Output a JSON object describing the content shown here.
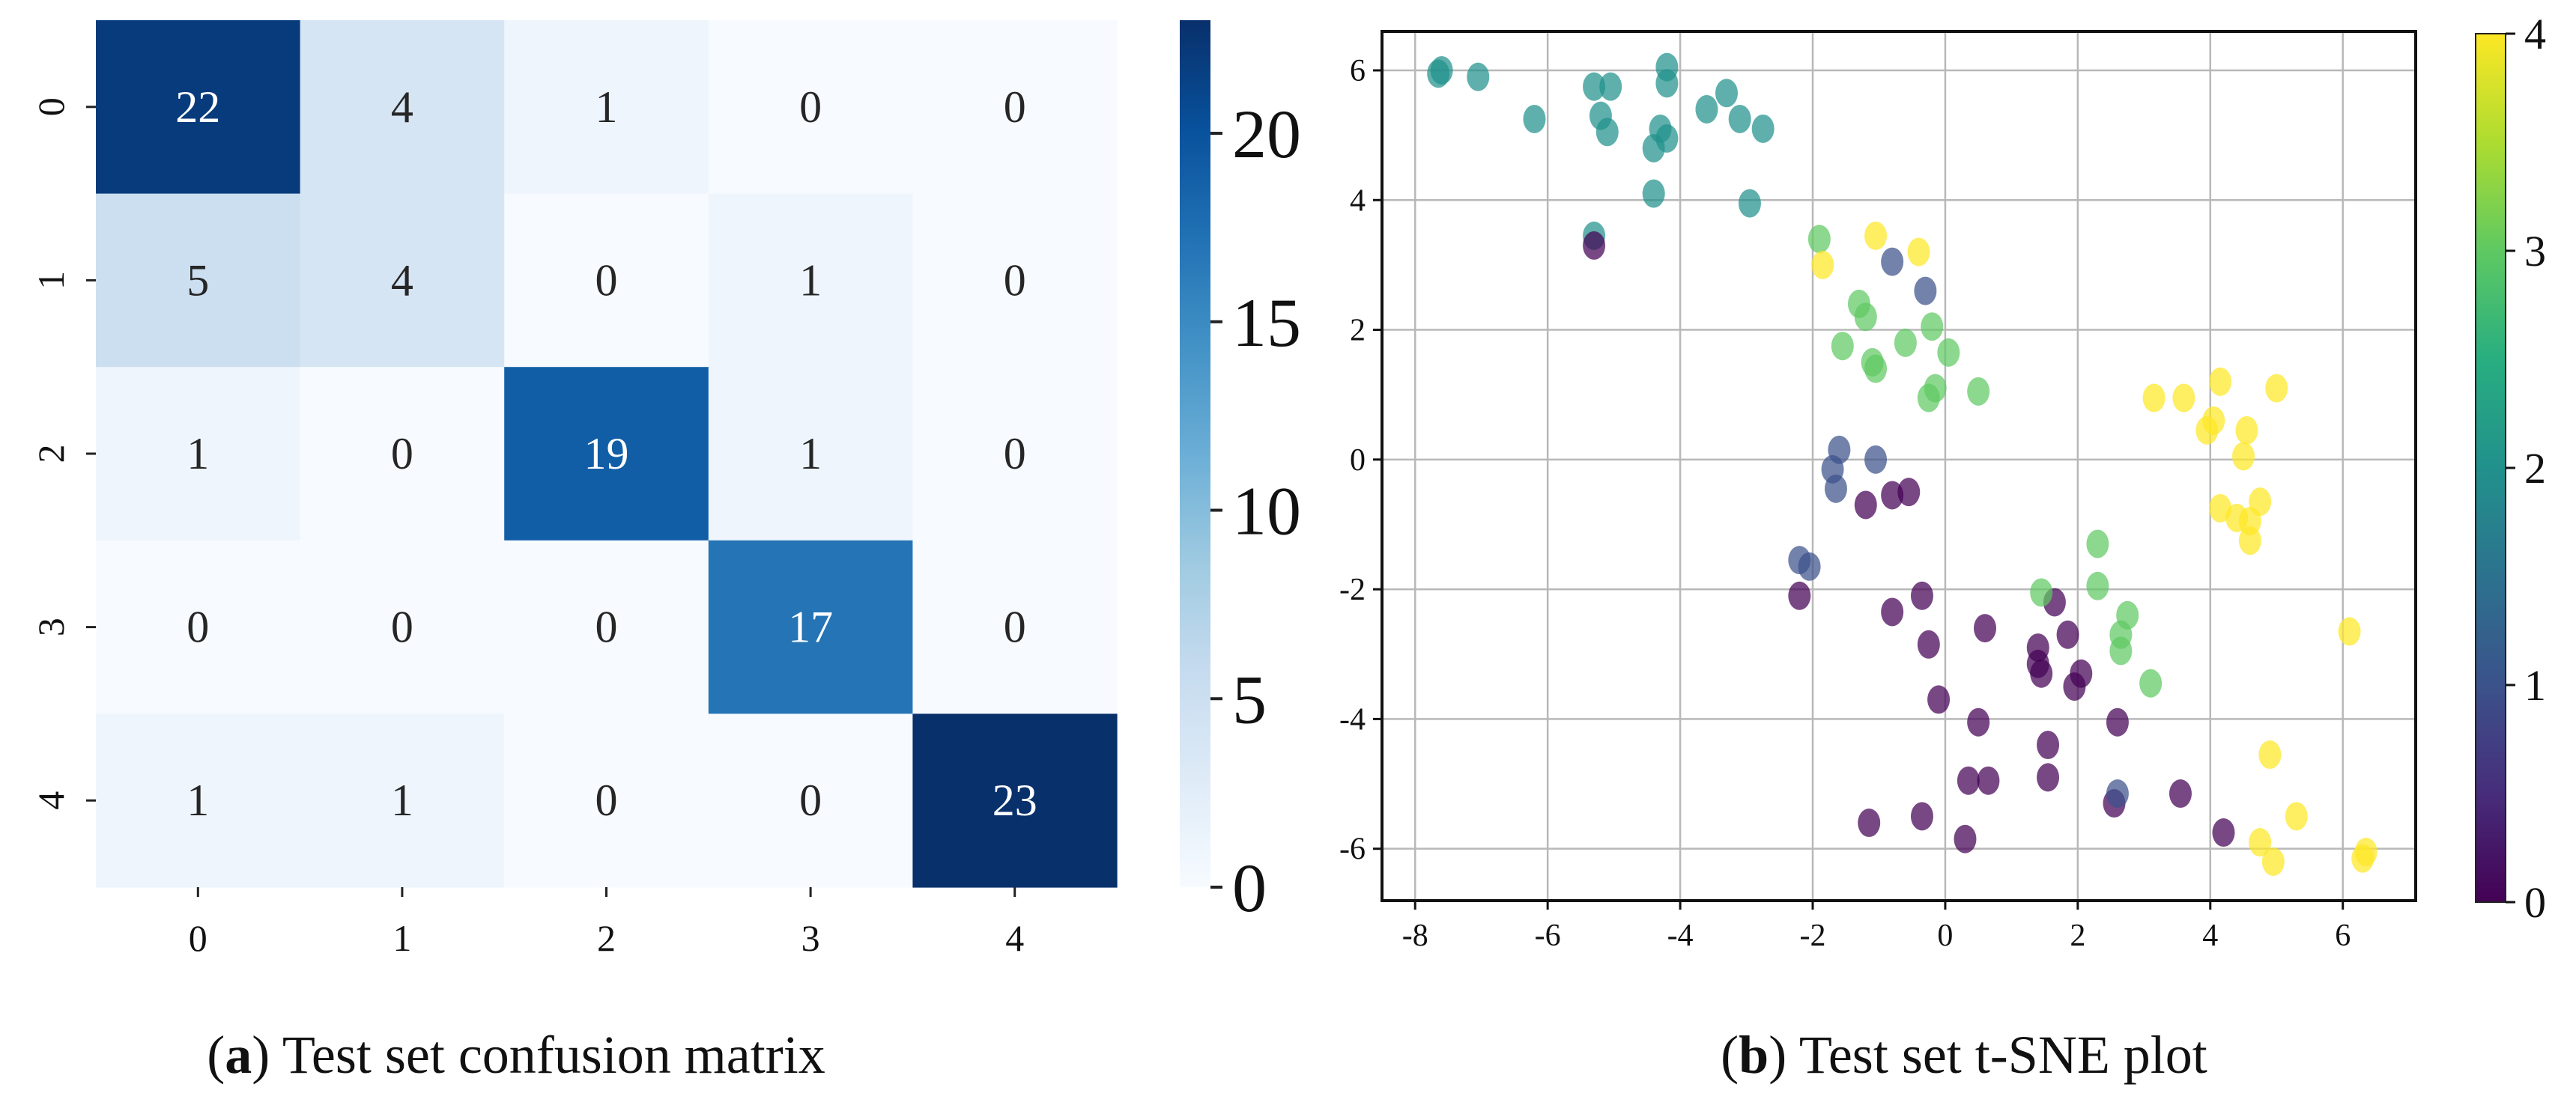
{
  "chart_data": [
    {
      "type": "heatmap",
      "title": "",
      "xlabel": "",
      "ylabel": "",
      "x_categories": [
        "0",
        "1",
        "2",
        "3",
        "4"
      ],
      "y_categories": [
        "0",
        "1",
        "2",
        "3",
        "4"
      ],
      "matrix": [
        [
          22,
          4,
          1,
          0,
          0
        ],
        [
          5,
          4,
          0,
          1,
          0
        ],
        [
          1,
          0,
          19,
          1,
          0
        ],
        [
          0,
          0,
          0,
          17,
          0
        ],
        [
          1,
          1,
          0,
          0,
          23
        ]
      ],
      "colorscale": "Blues",
      "color_range": [
        0,
        23
      ],
      "colorbar_ticks": [
        0,
        5,
        10,
        15,
        20
      ],
      "colorbar_tick_labels": [
        "0",
        "5",
        "10",
        "15",
        "20"
      ]
    },
    {
      "type": "scatter",
      "title": "",
      "xlabel": "",
      "ylabel": "",
      "xlim": [
        -8.5,
        7.1
      ],
      "ylim": [
        -6.8,
        6.6
      ],
      "xticks": [
        -8,
        -6,
        -4,
        -2,
        0,
        2,
        4,
        6
      ],
      "xtick_labels": [
        "-8",
        "-6",
        "-4",
        "-2",
        "0",
        "2",
        "4",
        "6"
      ],
      "yticks": [
        -6,
        -4,
        -2,
        0,
        2,
        4,
        6
      ],
      "ytick_labels": [
        "-6",
        "-4",
        "-2",
        "0",
        "2",
        "4",
        "6"
      ],
      "grid": true,
      "colorscale": "viridis",
      "color_range": [
        0,
        4
      ],
      "colorbar_ticks": [
        0,
        1,
        2,
        3,
        4
      ],
      "colorbar_tick_labels": [
        "0",
        "1",
        "2",
        "3",
        "4"
      ],
      "points": [
        [
          -7.6,
          6.0,
          2
        ],
        [
          -7.65,
          5.95,
          2
        ],
        [
          -7.05,
          5.9,
          2
        ],
        [
          -6.2,
          5.25,
          2
        ],
        [
          -5.3,
          5.75,
          2
        ],
        [
          -5.05,
          5.75,
          2
        ],
        [
          -5.2,
          5.3,
          2
        ],
        [
          -5.1,
          5.05,
          2
        ],
        [
          -4.2,
          6.05,
          2
        ],
        [
          -4.2,
          5.8,
          2
        ],
        [
          -4.3,
          5.1,
          2
        ],
        [
          -4.2,
          4.95,
          2
        ],
        [
          -4.4,
          4.8,
          2
        ],
        [
          -3.6,
          5.4,
          2
        ],
        [
          -3.3,
          5.65,
          2
        ],
        [
          -3.1,
          5.25,
          2
        ],
        [
          -2.75,
          5.1,
          2
        ],
        [
          -4.4,
          4.1,
          2
        ],
        [
          -2.95,
          3.95,
          2
        ],
        [
          -5.3,
          3.45,
          2
        ],
        [
          -5.3,
          3.3,
          0
        ],
        [
          -1.9,
          3.4,
          3
        ],
        [
          -1.85,
          3.0,
          4
        ],
        [
          -1.05,
          3.45,
          4
        ],
        [
          -0.8,
          3.05,
          1
        ],
        [
          -0.4,
          3.2,
          4
        ],
        [
          -1.3,
          2.4,
          3
        ],
        [
          -1.2,
          2.2,
          3
        ],
        [
          -0.3,
          2.6,
          1
        ],
        [
          -1.55,
          1.75,
          3
        ],
        [
          -0.6,
          1.8,
          3
        ],
        [
          -1.1,
          1.5,
          3
        ],
        [
          -1.05,
          1.4,
          3
        ],
        [
          -0.2,
          2.05,
          3
        ],
        [
          0.05,
          1.65,
          3
        ],
        [
          -0.15,
          1.1,
          3
        ],
        [
          -0.25,
          0.95,
          3
        ],
        [
          0.5,
          1.05,
          3
        ],
        [
          -1.6,
          0.15,
          1
        ],
        [
          -1.7,
          -0.15,
          1
        ],
        [
          -1.65,
          -0.45,
          1
        ],
        [
          -1.05,
          0.0,
          1
        ],
        [
          -0.8,
          -0.55,
          0
        ],
        [
          -0.55,
          -0.5,
          0
        ],
        [
          -1.2,
          -0.7,
          0
        ],
        [
          -2.2,
          -1.55,
          1
        ],
        [
          -2.05,
          -1.65,
          1
        ],
        [
          -2.2,
          -2.1,
          0
        ],
        [
          -0.35,
          -2.1,
          0
        ],
        [
          -0.8,
          -2.35,
          0
        ],
        [
          -0.25,
          -2.85,
          0
        ],
        [
          0.6,
          -2.6,
          0
        ],
        [
          -0.1,
          -3.7,
          0
        ],
        [
          0.5,
          -4.05,
          0
        ],
        [
          1.4,
          -2.9,
          0
        ],
        [
          1.65,
          -2.2,
          0
        ],
        [
          1.4,
          -3.15,
          0
        ],
        [
          1.45,
          -3.3,
          0
        ],
        [
          1.85,
          -2.7,
          0
        ],
        [
          1.95,
          -3.5,
          0
        ],
        [
          2.05,
          -3.3,
          0
        ],
        [
          2.6,
          -4.05,
          0
        ],
        [
          1.55,
          -4.4,
          0
        ],
        [
          1.55,
          -4.9,
          0
        ],
        [
          0.35,
          -4.95,
          0
        ],
        [
          0.65,
          -4.95,
          0
        ],
        [
          -1.15,
          -5.6,
          0
        ],
        [
          -0.35,
          -5.5,
          0
        ],
        [
          0.3,
          -5.85,
          0
        ],
        [
          2.55,
          -5.3,
          0
        ],
        [
          2.6,
          -5.15,
          1
        ],
        [
          3.55,
          -5.15,
          0
        ],
        [
          4.2,
          -5.75,
          0
        ],
        [
          1.45,
          -2.05,
          3
        ],
        [
          2.3,
          -1.3,
          3
        ],
        [
          2.3,
          -1.95,
          3
        ],
        [
          2.75,
          -2.4,
          3
        ],
        [
          2.65,
          -2.7,
          3
        ],
        [
          2.65,
          -2.95,
          3
        ],
        [
          3.1,
          -3.45,
          3
        ],
        [
          3.15,
          0.95,
          4
        ],
        [
          3.6,
          0.95,
          4
        ],
        [
          4.15,
          1.2,
          4
        ],
        [
          5.0,
          1.1,
          4
        ],
        [
          3.95,
          0.45,
          4
        ],
        [
          4.05,
          0.6,
          4
        ],
        [
          4.55,
          0.45,
          4
        ],
        [
          4.5,
          0.05,
          4
        ],
        [
          4.15,
          -0.75,
          4
        ],
        [
          4.4,
          -0.9,
          4
        ],
        [
          4.75,
          -0.65,
          4
        ],
        [
          4.6,
          -0.95,
          4
        ],
        [
          4.6,
          -1.25,
          4
        ],
        [
          6.1,
          -2.65,
          4
        ],
        [
          4.9,
          -4.55,
          4
        ],
        [
          5.3,
          -5.5,
          4
        ],
        [
          4.75,
          -5.9,
          4
        ],
        [
          4.95,
          -6.2,
          4
        ],
        [
          6.35,
          -6.05,
          4
        ],
        [
          6.3,
          -6.15,
          4
        ]
      ]
    }
  ],
  "captions": {
    "a_letter": "a",
    "a_text": " Test set confusion matrix",
    "b_letter": "b",
    "b_text": " Test set t-SNE plot"
  }
}
